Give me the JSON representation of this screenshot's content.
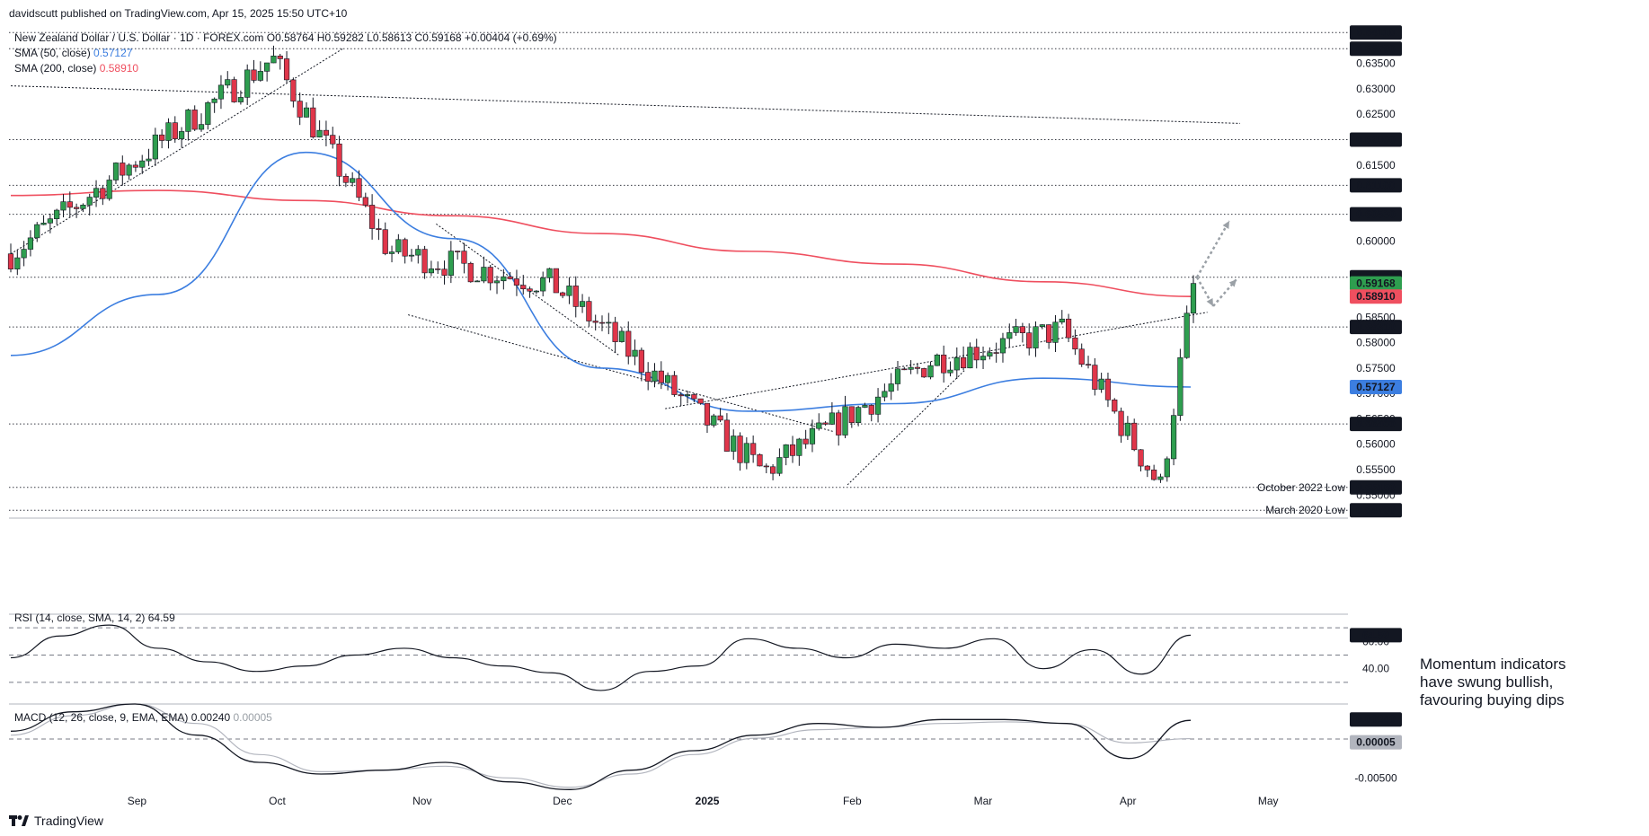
{
  "header": {
    "published": "davidscutt published on TradingView.com, Apr 15, 2025 15:50 UTC+10",
    "symbol_line": "New Zealand Dollar / U.S. Dollar · 1D · FOREX.com",
    "ohlc": "O0.58764 H0.59282 L0.58613 C0.59168 +0.00404 (+0.69%)",
    "sma50_label": "SMA (50, close)",
    "sma50_value": "0.57127",
    "sma200_label": "SMA (200, close)",
    "sma200_value": "0.58910"
  },
  "colors": {
    "up": "#26a69a",
    "up_fill": "#2e9e4f",
    "down": "#e0364a",
    "sma50": "#3c7ee0",
    "sma200": "#ef4f5f",
    "grid_line": "#131722",
    "text": "#131722"
  },
  "annotation": {
    "line1": "Momentum indicators",
    "line2": "have swung bullish,",
    "line3": "favouring buying dips"
  },
  "brand": "TradingView",
  "chart_data": [
    {
      "type": "candlestick",
      "title": "New Zealand Dollar / U.S. Dollar · 1D · FOREX.com",
      "x_ticks": [
        "Sep",
        "Oct",
        "Nov",
        "Dec",
        "2025",
        "Feb",
        "Mar",
        "Apr",
        "May"
      ],
      "ylim": [
        0.5458,
        0.6422
      ],
      "y_ticks": [
        "0.63500",
        "0.63000",
        "0.62500",
        "0.61500",
        "0.60000",
        "0.58500",
        "0.58000",
        "0.57500",
        "0.57000",
        "0.56500",
        "0.56000",
        "0.55500",
        "0.55000"
      ],
      "price_levels": [
        {
          "label": "0.64110",
          "value": 0.6411,
          "note": ""
        },
        {
          "label": "0.63790",
          "value": 0.6379,
          "note": ""
        },
        {
          "label": "0.62000",
          "value": 0.62,
          "note": ""
        },
        {
          "label": "0.61100",
          "value": 0.611,
          "note": ""
        },
        {
          "label": "0.60530",
          "value": 0.6053,
          "note": ""
        },
        {
          "label": "0.59290",
          "value": 0.5929,
          "note": ""
        },
        {
          "label": "0.58310",
          "value": 0.5831,
          "note": ""
        },
        {
          "label": "0.56400",
          "value": 0.564,
          "note": ""
        },
        {
          "label": "0.55150",
          "value": 0.5515,
          "note": "October 2022 Low"
        },
        {
          "label": "0.54700",
          "value": 0.547,
          "note": "March 2020 Low"
        }
      ],
      "indicator_badges": [
        {
          "label": "0.59168",
          "value": 0.59168,
          "color": "#2e9e4f"
        },
        {
          "label": "0.58910",
          "value": 0.5891,
          "color": "#ef4f5f"
        },
        {
          "label": "0.57127",
          "value": 0.57127,
          "color": "#3c7ee0"
        }
      ],
      "key_closes": [
        {
          "date": "2024-08-05",
          "close": 0.5975
        },
        {
          "date": "2024-09-30",
          "close": 0.636
        },
        {
          "date": "2024-10-25",
          "close": 0.598
        },
        {
          "date": "2024-11-29",
          "close": 0.5915
        },
        {
          "date": "2025-01-13",
          "close": 0.5545
        },
        {
          "date": "2025-02-18",
          "close": 0.5765
        },
        {
          "date": "2025-03-18",
          "close": 0.5825
        },
        {
          "date": "2025-04-08",
          "close": 0.5515
        },
        {
          "date": "2025-04-15",
          "close": 0.59168
        }
      ],
      "sma50": [
        0.5775,
        0.5895,
        0.6175,
        0.6005,
        0.575,
        0.5665,
        0.568,
        0.573,
        0.57127
      ],
      "sma200": [
        0.609,
        0.61,
        0.608,
        0.605,
        0.6015,
        0.598,
        0.5955,
        0.592,
        0.5891
      ]
    },
    {
      "type": "line",
      "title": "RSI (14, close, SMA, 14, 2)",
      "value_label": "64.59",
      "y_ticks": [
        "60.00",
        "40.00"
      ],
      "ylim": [
        20,
        80
      ],
      "values": [
        48,
        64,
        72,
        55,
        45,
        38,
        42,
        50,
        55,
        48,
        42,
        37,
        24,
        38,
        42,
        62,
        55,
        48,
        58,
        55,
        62,
        40,
        54,
        36,
        64.59
      ]
    },
    {
      "type": "line",
      "title": "MACD (12, 26, close, 9, EMA, EMA)",
      "macd_value": "0.00240",
      "signal_value": "0.00005",
      "y_ticks": [
        "-0.00500"
      ],
      "ylim": [
        -0.0075,
        0.0045
      ],
      "macd": [
        0.001,
        0.0035,
        0.0045,
        0.0005,
        -0.003,
        -0.0045,
        -0.004,
        -0.003,
        -0.0055,
        -0.0065,
        -0.004,
        -0.0015,
        0.0005,
        0.002,
        0.0015,
        0.0025,
        0.0025,
        0.002,
        -0.0025,
        0.0024
      ],
      "signal": [
        0.0005,
        0.003,
        0.0045,
        0.002,
        -0.002,
        -0.0042,
        -0.004,
        -0.0035,
        -0.005,
        -0.0062,
        -0.0045,
        -0.002,
        0.0001,
        0.0012,
        0.0015,
        0.002,
        0.0022,
        0.002,
        -0.0005,
        5e-05
      ]
    }
  ]
}
